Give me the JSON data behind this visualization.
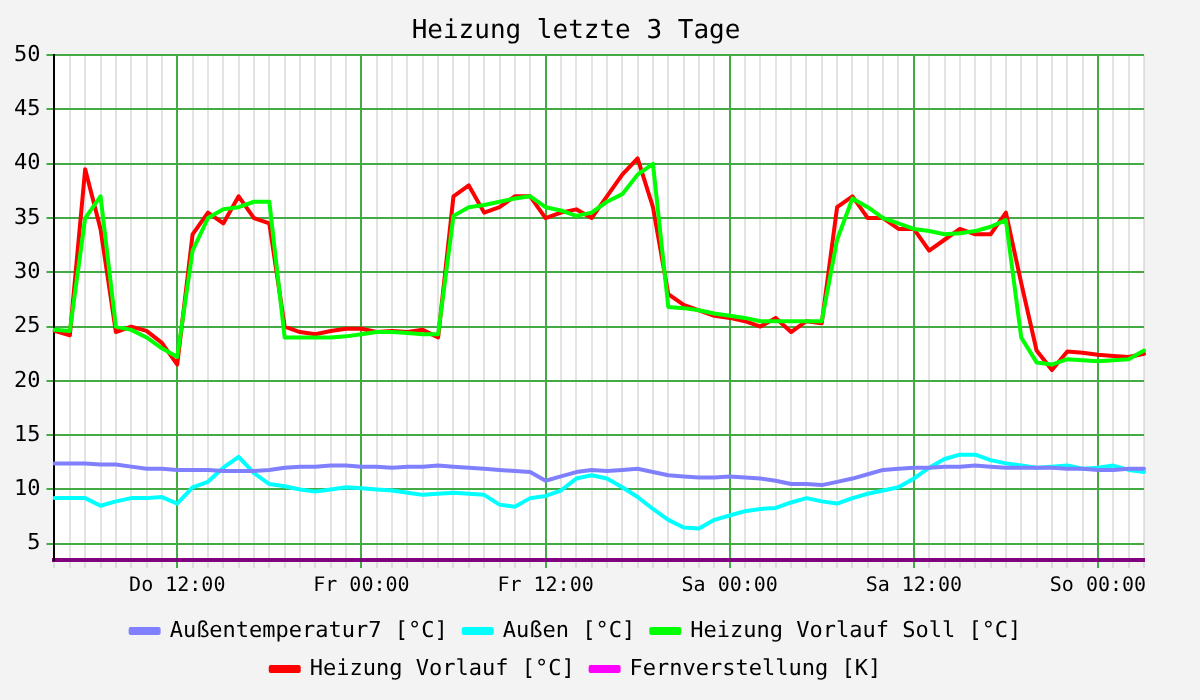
{
  "chart_data": {
    "type": "line",
    "title": "Heizung letzte 3 Tage",
    "categories": [
      null,
      null,
      null,
      null,
      null,
      null,
      null,
      null,
      "Do 12:00",
      null,
      null,
      null,
      null,
      null,
      null,
      null,
      null,
      null,
      null,
      null,
      "Fr 00:00",
      null,
      null,
      null,
      null,
      null,
      null,
      null,
      null,
      null,
      null,
      null,
      "Fr 12:00",
      null,
      null,
      null,
      null,
      null,
      null,
      null,
      null,
      null,
      null,
      null,
      "Sa 00:00",
      null,
      null,
      null,
      null,
      null,
      null,
      null,
      null,
      null,
      null,
      null,
      "Sa 12:00",
      null,
      null,
      null,
      null,
      null,
      null,
      null,
      null,
      null,
      null,
      null,
      "So 00:00",
      null,
      null,
      null
    ],
    "ylim": [
      3.5,
      50
    ],
    "yticks": [
      5,
      10,
      15,
      20,
      25,
      30,
      35,
      40,
      45,
      50
    ],
    "grid": true,
    "legend": "bottom",
    "marker": "none",
    "line_style": "solid",
    "series": [
      {
        "name": "Außentemperatur7 [°C]",
        "color": "#8080ff",
        "values": [
          12.4,
          12.4,
          12.4,
          12.3,
          12.3,
          12.1,
          11.9,
          11.9,
          11.8,
          11.8,
          11.8,
          11.7,
          11.7,
          11.7,
          11.8,
          12.0,
          12.1,
          12.1,
          12.2,
          12.2,
          12.1,
          12.1,
          12.0,
          12.1,
          12.1,
          12.2,
          12.1,
          12.0,
          11.9,
          11.8,
          11.7,
          11.6,
          10.8,
          11.2,
          11.6,
          11.8,
          11.7,
          11.8,
          11.9,
          11.6,
          11.3,
          11.2,
          11.1,
          11.1,
          11.2,
          11.1,
          11.0,
          10.8,
          10.5,
          10.5,
          10.4,
          10.7,
          11.0,
          11.4,
          11.8,
          11.9,
          12.0,
          12.0,
          12.1,
          12.1,
          12.2,
          12.1,
          12.0,
          12.0,
          12.0,
          12.0,
          11.9,
          11.9,
          11.8,
          11.8,
          11.9,
          11.9
        ]
      },
      {
        "name": "Außen [°C]",
        "color": "#00ffff",
        "values": [
          9.2,
          9.2,
          9.2,
          8.5,
          8.9,
          9.2,
          9.2,
          9.3,
          8.7,
          10.2,
          10.7,
          12.0,
          13.0,
          11.5,
          10.5,
          10.3,
          10.0,
          9.8,
          10.0,
          10.2,
          10.1,
          10.0,
          9.9,
          9.7,
          9.5,
          9.6,
          9.7,
          9.6,
          9.5,
          8.6,
          8.4,
          9.2,
          9.4,
          9.9,
          11.0,
          11.3,
          11.0,
          10.2,
          9.3,
          8.2,
          7.2,
          6.5,
          6.4,
          7.2,
          7.6,
          8.0,
          8.2,
          8.3,
          8.8,
          9.2,
          8.9,
          8.7,
          9.2,
          9.6,
          9.9,
          10.2,
          11.0,
          12.0,
          12.8,
          13.2,
          13.2,
          12.7,
          12.4,
          12.2,
          12.0,
          12.1,
          12.2,
          11.9,
          12.0,
          12.2,
          11.8,
          11.6
        ]
      },
      {
        "name": "Heizung Vorlauf Soll [°C]",
        "color": "#00ff00",
        "values": [
          24.7,
          24.6,
          35.0,
          37.0,
          25.0,
          24.7,
          24.0,
          23.0,
          22.2,
          32.0,
          35.0,
          35.8,
          36.0,
          36.5,
          36.5,
          24.0,
          24.0,
          24.0,
          24.0,
          24.1,
          24.3,
          24.5,
          24.5,
          24.4,
          24.3,
          24.3,
          35.2,
          36.0,
          36.2,
          36.5,
          36.8,
          37.0,
          36.0,
          35.7,
          35.2,
          35.5,
          36.5,
          37.2,
          39.0,
          40.0,
          26.8,
          26.7,
          26.5,
          26.2,
          26.0,
          25.8,
          25.5,
          25.5,
          25.5,
          25.5,
          25.5,
          33.0,
          36.8,
          36.0,
          35.0,
          34.5,
          34.0,
          33.8,
          33.5,
          33.6,
          33.8,
          34.2,
          34.8,
          24.0,
          21.7,
          21.5,
          22.0,
          21.9,
          21.8,
          21.9,
          22.0,
          22.8
        ]
      },
      {
        "name": "Heizung Vorlauf [°C]",
        "color": "#ff0000",
        "values": [
          24.6,
          24.2,
          39.5,
          34.0,
          24.5,
          25.0,
          24.6,
          23.5,
          21.5,
          33.5,
          35.5,
          34.5,
          37.0,
          35.0,
          34.5,
          25.0,
          24.5,
          24.3,
          24.6,
          24.8,
          24.8,
          24.5,
          24.6,
          24.5,
          24.7,
          24.0,
          37.0,
          38.0,
          35.5,
          36.0,
          37.0,
          37.0,
          35.0,
          35.5,
          35.8,
          35.0,
          37.0,
          39.0,
          40.5,
          36.0,
          28.0,
          27.0,
          26.5,
          26.0,
          25.8,
          25.5,
          25.0,
          25.8,
          24.5,
          25.5,
          25.3,
          36.0,
          37.0,
          35.0,
          35.0,
          34.0,
          34.0,
          32.0,
          33.0,
          34.0,
          33.5,
          33.5,
          35.5,
          29.0,
          22.8,
          21.0,
          22.7,
          22.6,
          22.4,
          22.3,
          22.2,
          22.5
        ]
      },
      {
        "name": "Fernverstellung [K]",
        "color": "#ff00ff",
        "values": [
          null,
          null,
          null,
          null,
          null,
          null,
          null,
          null,
          null,
          null,
          null,
          null,
          null,
          null,
          null,
          null,
          null,
          null,
          null,
          null,
          null,
          null,
          null,
          null,
          null,
          null,
          null,
          null,
          null,
          null,
          null,
          null,
          null,
          null,
          null,
          null,
          null,
          null,
          null,
          null,
          null,
          null,
          null,
          null,
          null,
          null,
          null,
          null,
          null,
          null,
          null,
          null,
          null,
          null,
          null,
          null,
          null,
          null,
          null,
          null,
          null,
          null,
          null,
          null,
          null,
          null,
          null,
          null,
          null,
          null,
          null,
          null
        ]
      }
    ]
  }
}
